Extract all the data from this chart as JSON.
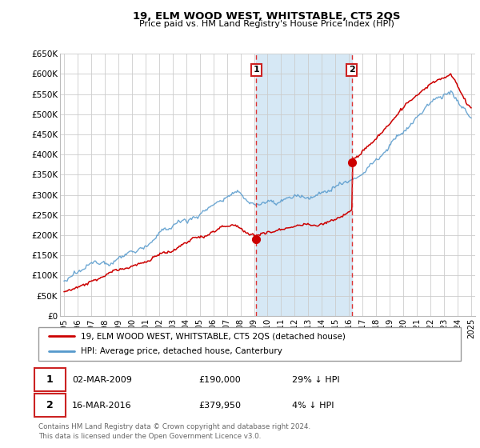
{
  "title": "19, ELM WOOD WEST, WHITSTABLE, CT5 2QS",
  "subtitle": "Price paid vs. HM Land Registry's House Price Index (HPI)",
  "legend_line1": "19, ELM WOOD WEST, WHITSTABLE, CT5 2QS (detached house)",
  "legend_line2": "HPI: Average price, detached house, Canterbury",
  "footnote": "Contains HM Land Registry data © Crown copyright and database right 2024.\nThis data is licensed under the Open Government Licence v3.0.",
  "sale1_date": "02-MAR-2009",
  "sale1_price": "£190,000",
  "sale1_hpi": "29% ↓ HPI",
  "sale1_year": 2009.17,
  "sale1_value": 190000,
  "sale2_date": "16-MAR-2016",
  "sale2_price": "£379,950",
  "sale2_hpi": "4% ↓ HPI",
  "sale2_year": 2016.21,
  "sale2_value": 379950,
  "ylim": [
    0,
    650000
  ],
  "yticks": [
    0,
    50000,
    100000,
    150000,
    200000,
    250000,
    300000,
    350000,
    400000,
    450000,
    500000,
    550000,
    600000,
    650000
  ],
  "ytick_labels": [
    "£0",
    "£50K",
    "£100K",
    "£150K",
    "£200K",
    "£250K",
    "£300K",
    "£350K",
    "£400K",
    "£450K",
    "£500K",
    "£550K",
    "£600K",
    "£650K"
  ],
  "xlim_left": 1994.7,
  "xlim_right": 2025.3,
  "xticks": [
    1995,
    1996,
    1997,
    1998,
    1999,
    2000,
    2001,
    2002,
    2003,
    2004,
    2005,
    2006,
    2007,
    2008,
    2009,
    2010,
    2011,
    2012,
    2013,
    2014,
    2015,
    2016,
    2017,
    2018,
    2019,
    2020,
    2021,
    2022,
    2023,
    2024,
    2025
  ],
  "property_color": "#cc0000",
  "hpi_color": "#5599cc",
  "vline_color": "#dd3333",
  "marker_color": "#cc0000",
  "grid_color": "#cccccc",
  "highlight_bg": "#d6e8f5",
  "box_edge_color": "#cc2222",
  "legend_border_color": "#999999"
}
